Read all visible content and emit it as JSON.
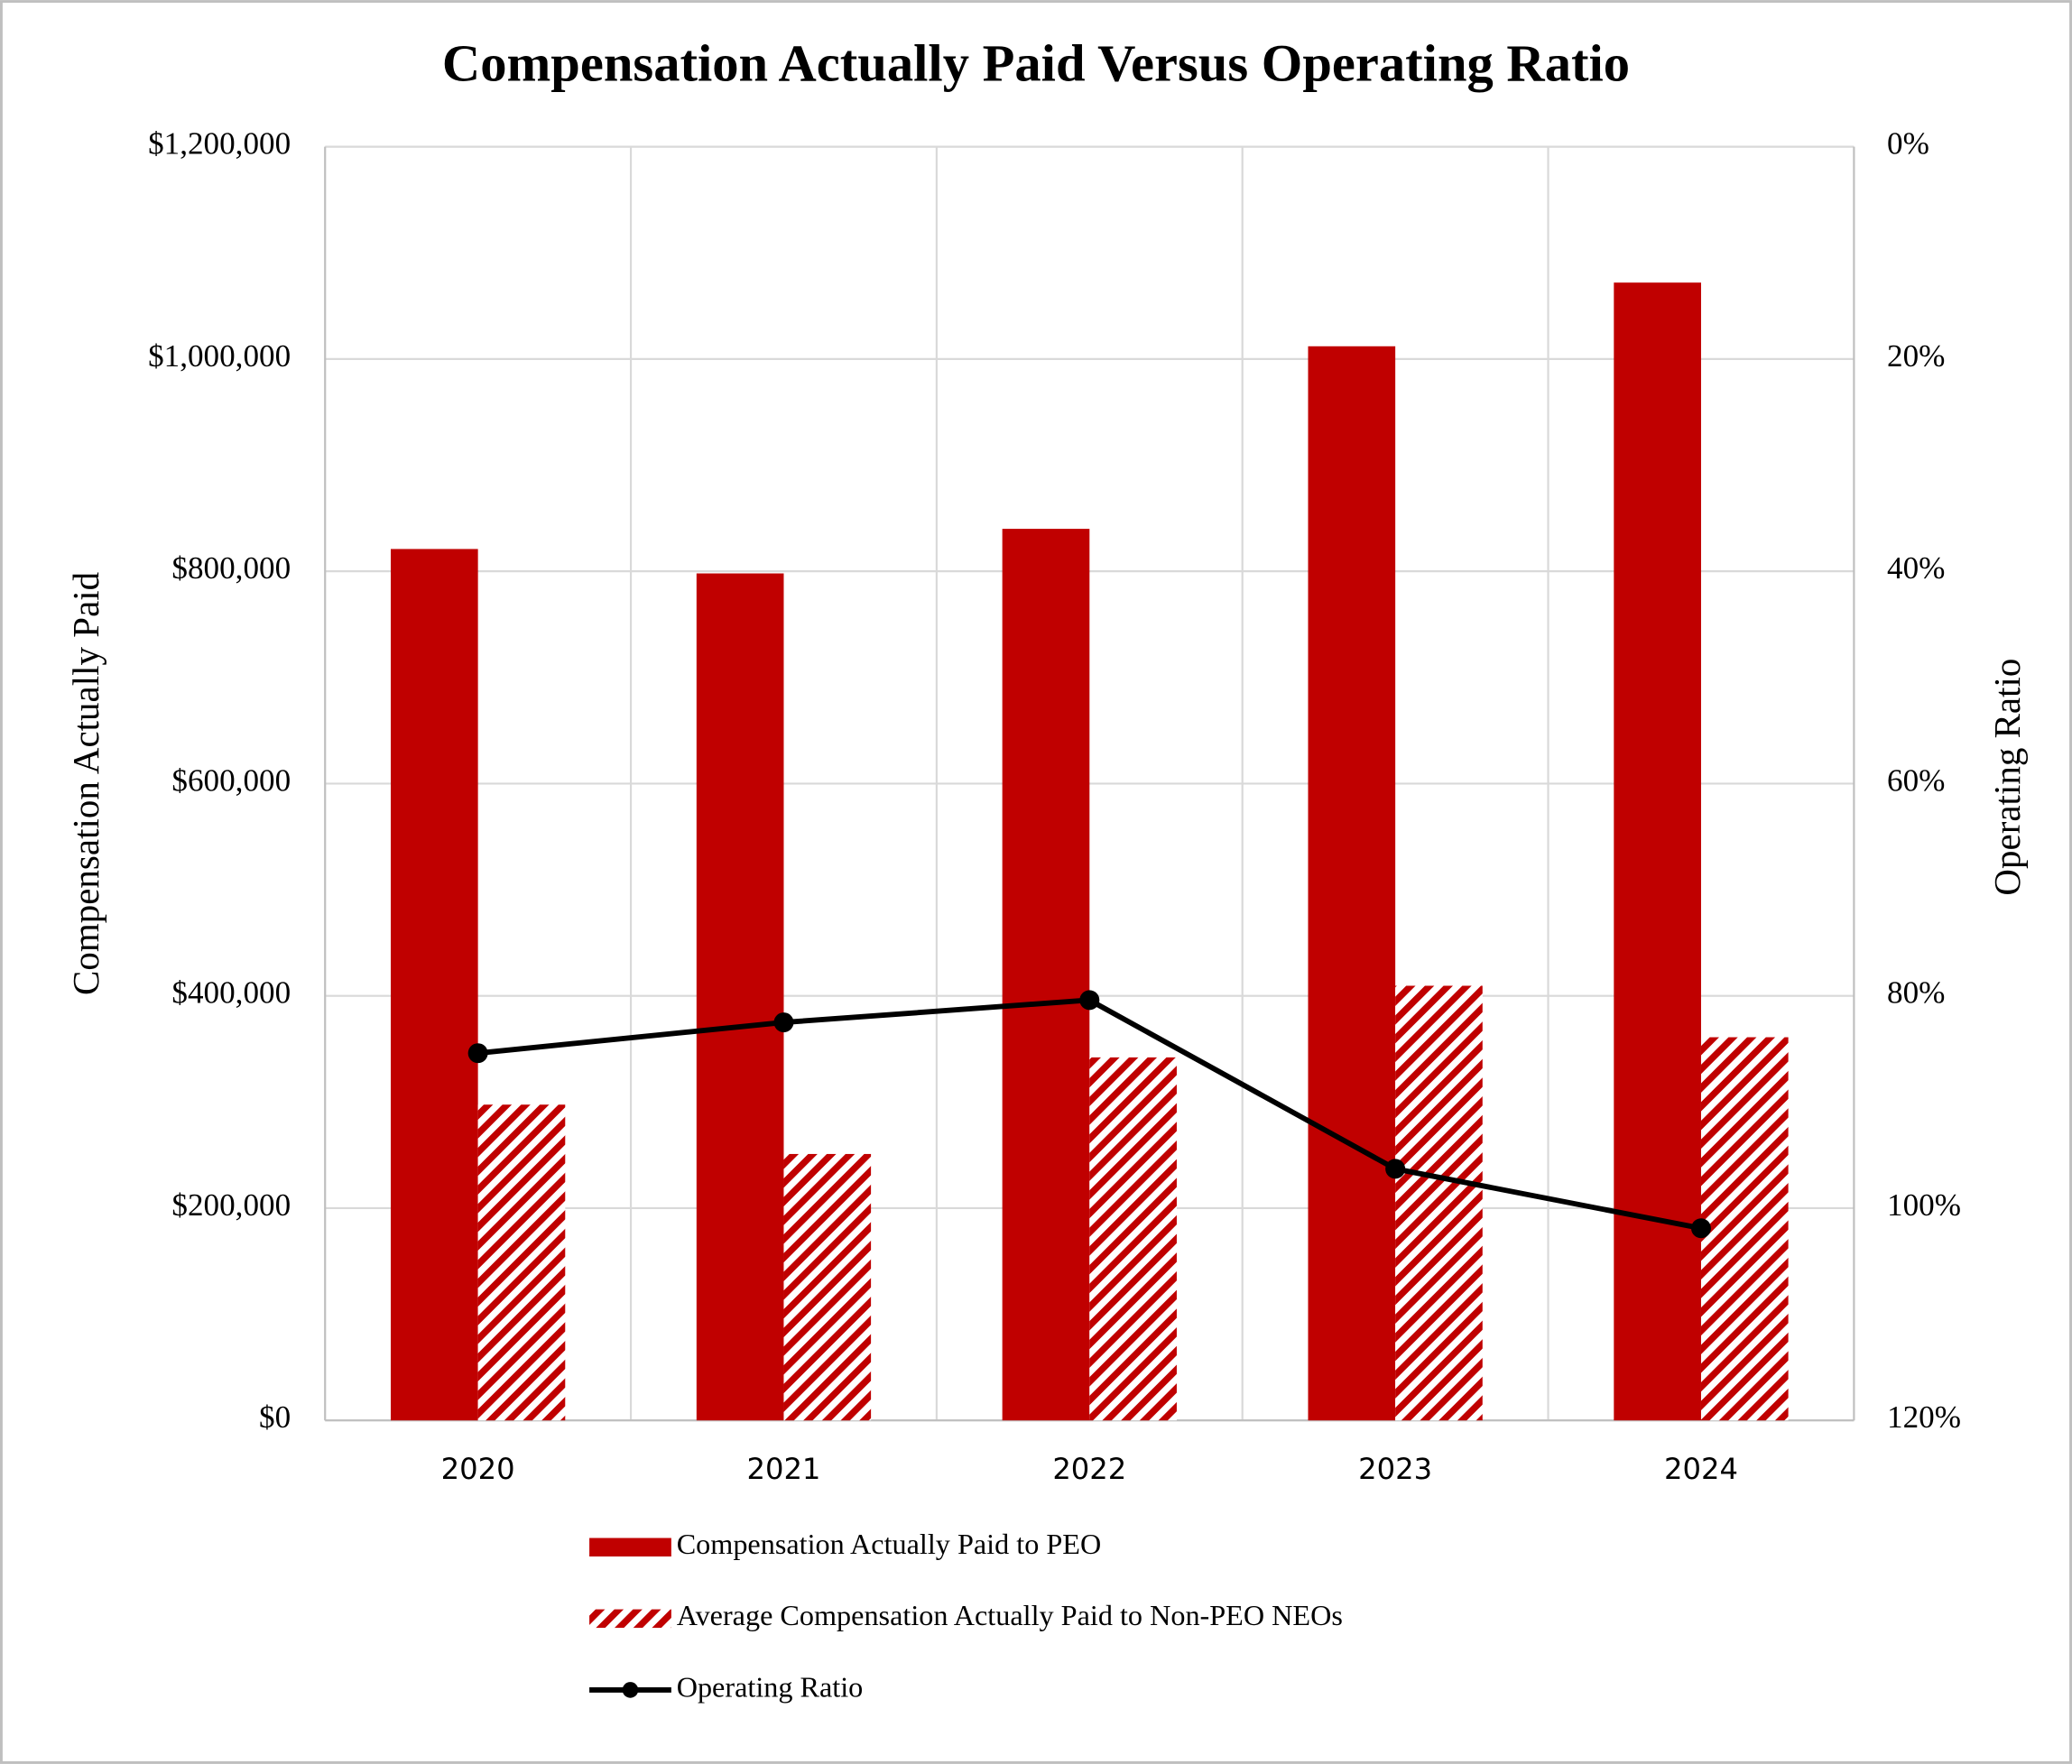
{
  "chart_data": {
    "type": "bar",
    "title": "Compensation Actually Paid Versus Operating Ratio",
    "ylabel": "Compensation Actually Paid",
    "y2label": "Operating Ratio",
    "categories": [
      "2020",
      "2021",
      "2022",
      "2023",
      "2024"
    ],
    "series": [
      {
        "name": "Compensation Actually Paid to PEO",
        "type": "bar",
        "color": "#c00000",
        "pattern": "solid",
        "values": [
          821000,
          798000,
          840000,
          1012000,
          1072000
        ]
      },
      {
        "name": "Average Compensation Actually Paid to Non-PEO NEOs",
        "type": "bar",
        "color": "#c00000",
        "pattern": "hatch",
        "values": [
          297500,
          251000,
          342000,
          409500,
          361000
        ]
      },
      {
        "name": "Operating Ratio",
        "type": "line",
        "color": "#000000",
        "axis": "y2",
        "values": [
          85.4,
          82.5,
          80.4,
          96.3,
          101.9
        ]
      }
    ],
    "ylim": [
      0,
      1200000
    ],
    "yticks": [
      {
        "value": 0,
        "label": "$0"
      },
      {
        "value": 200000,
        "label": "$200,000"
      },
      {
        "value": 400000,
        "label": "$400,000"
      },
      {
        "value": 600000,
        "label": "$600,000"
      },
      {
        "value": 800000,
        "label": "$800,000"
      },
      {
        "value": 1000000,
        "label": "$1,000,000"
      },
      {
        "value": 1200000,
        "label": "$1,200,000"
      }
    ],
    "y2lim": [
      0,
      120
    ],
    "y2_inverted": true,
    "y2ticks": [
      {
        "value": 0,
        "label": "0%"
      },
      {
        "value": 20,
        "label": "20%"
      },
      {
        "value": 40,
        "label": "40%"
      },
      {
        "value": 60,
        "label": "60%"
      },
      {
        "value": 80,
        "label": "80%"
      },
      {
        "value": 100,
        "label": "100%"
      },
      {
        "value": 120,
        "label": "120%"
      }
    ],
    "grid": true,
    "legend": "bottom"
  }
}
